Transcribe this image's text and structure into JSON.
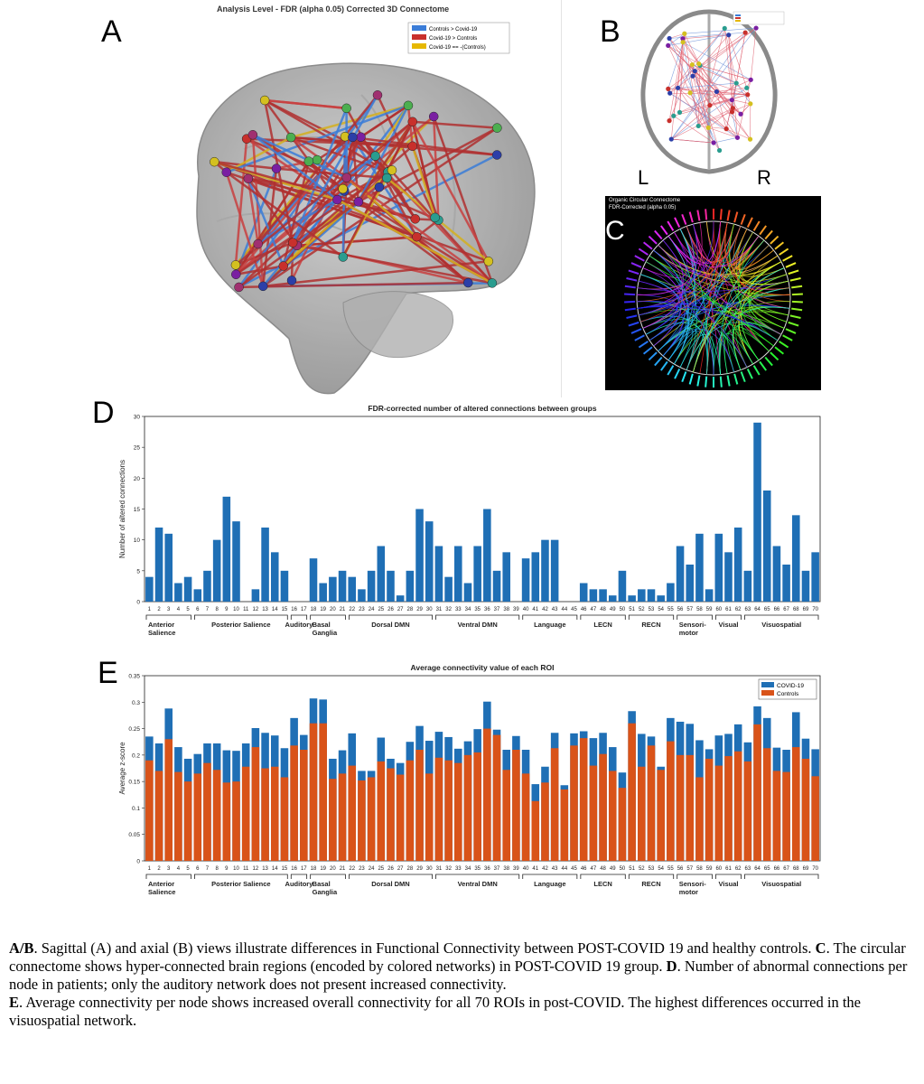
{
  "panels": {
    "A": {
      "letter": "A",
      "title": "Analysis Level - FDR (alpha 0.05) Corrected 3D Connectome",
      "legend": [
        {
          "label": "Controls > Covid-19",
          "color": "#3b7dd8"
        },
        {
          "label": "Covid-19 > Controls",
          "color": "#c9302c"
        },
        {
          "label": "Covid-19 == -(Controls)",
          "color": "#e6b800"
        }
      ]
    },
    "B": {
      "letter": "B",
      "left_label": "L",
      "right_label": "R"
    },
    "C": {
      "letter": "C",
      "title_line1": "Organic Circular Connectome",
      "title_line2": "FDR-Corrected (alpha 0.05)"
    },
    "D": {
      "letter": "D"
    },
    "E": {
      "letter": "E"
    }
  },
  "chart_data": [
    {
      "type": "bar",
      "panel": "D",
      "title": "FDR-corrected number of altered connections between groups",
      "ylabel": "Number of altered connections",
      "xlabel": "",
      "ylim": [
        0,
        30
      ],
      "yticks": [
        0,
        5,
        10,
        15,
        20,
        25,
        30
      ],
      "categories": [
        "1",
        "2",
        "3",
        "4",
        "5",
        "6",
        "7",
        "8",
        "9",
        "10",
        "11",
        "12",
        "13",
        "14",
        "15",
        "16",
        "17",
        "18",
        "19",
        "20",
        "21",
        "22",
        "23",
        "24",
        "25",
        "26",
        "27",
        "28",
        "29",
        "30",
        "31",
        "32",
        "33",
        "34",
        "35",
        "36",
        "37",
        "38",
        "39",
        "40",
        "41",
        "42",
        "43",
        "44",
        "45",
        "46",
        "47",
        "48",
        "49",
        "50",
        "51",
        "52",
        "53",
        "54",
        "55",
        "56",
        "57",
        "58",
        "59",
        "60",
        "61",
        "62",
        "63",
        "64",
        "65",
        "66",
        "67",
        "68",
        "69",
        "70"
      ],
      "series": [
        {
          "color": "#1f6fb5",
          "values": [
            4,
            12,
            11,
            3,
            4,
            2,
            5,
            10,
            17,
            13,
            0,
            2,
            12,
            8,
            5,
            0,
            0,
            7,
            3,
            4,
            5,
            4,
            2,
            5,
            9,
            5,
            1,
            5,
            15,
            13,
            9,
            4,
            9,
            3,
            9,
            15,
            5,
            8,
            0,
            7,
            8,
            10,
            10,
            0,
            0,
            3,
            2,
            2,
            1,
            5,
            1,
            2,
            2,
            1,
            3,
            9,
            6,
            11,
            2,
            11,
            8,
            12,
            5,
            29,
            18,
            9,
            6,
            14,
            5,
            8
          ]
        }
      ],
      "networks": [
        {
          "line1": "Anterior",
          "line2": "Salience"
        },
        {
          "line1": "Posterior Salience",
          "line2": ""
        },
        {
          "line1": "Auditory",
          "line2": ""
        },
        {
          "line1": "Basal",
          "line2": "Ganglia"
        },
        {
          "line1": "Dorsal DMN",
          "line2": ""
        },
        {
          "line1": "Ventral DMN",
          "line2": ""
        },
        {
          "line1": "Language",
          "line2": ""
        },
        {
          "line1": "LECN",
          "line2": ""
        },
        {
          "line1": "RECN",
          "line2": ""
        },
        {
          "line1": "Sensori-",
          "line2": "motor"
        },
        {
          "line1": "Visual",
          "line2": ""
        },
        {
          "line1": "Visuospatial",
          "line2": ""
        }
      ]
    },
    {
      "type": "bar",
      "panel": "E",
      "title": "Average connectivity value of each ROI",
      "ylabel": "Average z-score",
      "xlabel": "",
      "ylim": [
        0,
        0.35
      ],
      "yticks": [
        0,
        0.05,
        0.1,
        0.15,
        0.2,
        0.25,
        0.3,
        0.35
      ],
      "categories": [
        "1",
        "2",
        "3",
        "4",
        "5",
        "6",
        "7",
        "8",
        "9",
        "10",
        "11",
        "12",
        "13",
        "14",
        "15",
        "16",
        "17",
        "18",
        "19",
        "20",
        "21",
        "22",
        "23",
        "24",
        "25",
        "26",
        "27",
        "28",
        "29",
        "30",
        "31",
        "32",
        "33",
        "34",
        "35",
        "36",
        "37",
        "38",
        "39",
        "40",
        "41",
        "42",
        "43",
        "44",
        "45",
        "46",
        "47",
        "48",
        "49",
        "50",
        "51",
        "52",
        "53",
        "54",
        "55",
        "56",
        "57",
        "58",
        "59",
        "60",
        "61",
        "62",
        "63",
        "64",
        "65",
        "66",
        "67",
        "68",
        "69",
        "70"
      ],
      "legend": [
        {
          "label": "COVID-19",
          "color": "#1f6fb5"
        },
        {
          "label": "Controls",
          "color": "#d95319"
        }
      ],
      "series": [
        {
          "name": "COVID-19",
          "color": "#1f6fb5",
          "values": [
            0.235,
            0.222,
            0.288,
            0.215,
            0.193,
            0.202,
            0.222,
            0.222,
            0.209,
            0.208,
            0.222,
            0.251,
            0.242,
            0.237,
            0.213,
            0.27,
            0.238,
            0.307,
            0.305,
            0.193,
            0.209,
            0.241,
            0.17,
            0.17,
            0.233,
            0.193,
            0.185,
            0.225,
            0.255,
            0.227,
            0.244,
            0.234,
            0.212,
            0.226,
            0.249,
            0.301,
            0.248,
            0.21,
            0.236,
            0.21,
            0.145,
            0.178,
            0.242,
            0.143,
            0.241,
            0.245,
            0.232,
            0.242,
            0.215,
            0.167,
            0.283,
            0.24,
            0.235,
            0.178,
            0.27,
            0.263,
            0.259,
            0.228,
            0.211,
            0.237,
            0.24,
            0.258,
            0.224,
            0.292,
            0.27,
            0.214,
            0.21,
            0.281,
            0.231,
            0.211
          ]
        },
        {
          "name": "Controls",
          "color": "#d95319",
          "values": [
            0.19,
            0.17,
            0.23,
            0.168,
            0.15,
            0.165,
            0.185,
            0.172,
            0.148,
            0.15,
            0.178,
            0.215,
            0.175,
            0.178,
            0.158,
            0.218,
            0.21,
            0.26,
            0.26,
            0.155,
            0.165,
            0.18,
            0.152,
            0.158,
            0.188,
            0.175,
            0.163,
            0.19,
            0.21,
            0.165,
            0.195,
            0.19,
            0.185,
            0.2,
            0.205,
            0.25,
            0.238,
            0.172,
            0.21,
            0.165,
            0.113,
            0.148,
            0.213,
            0.135,
            0.218,
            0.232,
            0.18,
            0.202,
            0.17,
            0.138,
            0.26,
            0.178,
            0.218,
            0.172,
            0.226,
            0.2,
            0.2,
            0.158,
            0.193,
            0.18,
            0.198,
            0.207,
            0.188,
            0.258,
            0.213,
            0.17,
            0.168,
            0.215,
            0.193,
            0.16
          ]
        }
      ],
      "networks": [
        {
          "line1": "Anterior",
          "line2": "Salience"
        },
        {
          "line1": "Posterior Salience",
          "line2": ""
        },
        {
          "line1": "Auditory",
          "line2": ""
        },
        {
          "line1": "Basal",
          "line2": "Ganglia"
        },
        {
          "line1": "Dorsal DMN",
          "line2": ""
        },
        {
          "line1": "Ventral DMN",
          "line2": ""
        },
        {
          "line1": "Language",
          "line2": ""
        },
        {
          "line1": "LECN",
          "line2": ""
        },
        {
          "line1": "RECN",
          "line2": ""
        },
        {
          "line1": "Sensori-",
          "line2": "motor"
        },
        {
          "line1": "Visual",
          "line2": ""
        },
        {
          "line1": "Visuospatial",
          "line2": ""
        }
      ]
    }
  ],
  "caption": {
    "p1_bold1": "A/B",
    "p1_text1": ". Sagittal (A) and axial (B) views illustrate differences in Functional Connectivity between POST-COVID 19 and healthy controls. ",
    "p1_bold2": "C",
    "p1_text2": ". The circular connectome shows hyper-connected brain regions (encoded by colored networks) in POST-COVID 19 group. ",
    "p1_bold3": "D",
    "p1_text3": ". Number of abnormal connections per node in patients; only the auditory network does not present increased connectivity.",
    "p2_bold": "E",
    "p2_text": ". Average connectivity per node shows increased overall connectivity for all 70 ROIs in post-COVID. The highest differences occurred in the visuospatial network."
  }
}
